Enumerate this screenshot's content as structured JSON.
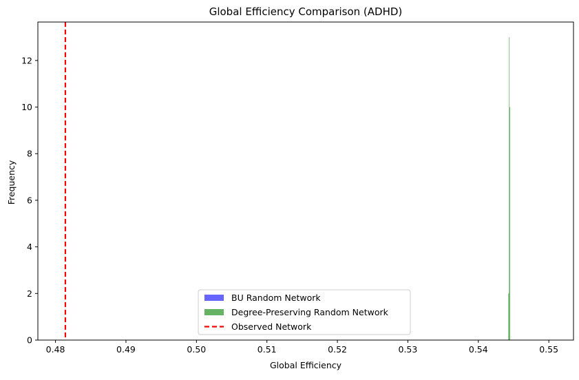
{
  "chart_data": {
    "type": "histogram",
    "title": "Global Efficiency Comparison (ADHD)",
    "xlabel": "Global Efficiency",
    "ylabel": "Frequency",
    "xlim": [
      0.4775,
      0.5535
    ],
    "ylim": [
      0,
      13.65
    ],
    "xticks": [
      0.48,
      0.49,
      0.5,
      0.51,
      0.52,
      0.53,
      0.54,
      0.55
    ],
    "xtick_labels": [
      "0.48",
      "0.49",
      "0.50",
      "0.51",
      "0.52",
      "0.53",
      "0.54",
      "0.55"
    ],
    "yticks": [
      0,
      2,
      4,
      6,
      8,
      10,
      12
    ],
    "ytick_labels": [
      "0",
      "2",
      "4",
      "6",
      "8",
      "10",
      "12"
    ],
    "grid": false,
    "legend_position": "lower center",
    "series": [
      {
        "name": "BU Random Network",
        "kind": "bars",
        "color": "#0000ff",
        "opacity": 0.6,
        "bins": []
      },
      {
        "name": "Degree-Preserving Random Network",
        "kind": "bars",
        "color": "#008000",
        "opacity": 0.6,
        "bins": [
          {
            "x0": 0.54425,
            "x1": 0.54435,
            "count": 2
          },
          {
            "x0": 0.54435,
            "x1": 0.5444,
            "count": 13
          },
          {
            "x0": 0.5444,
            "x1": 0.5445,
            "count": 10
          }
        ]
      },
      {
        "name": "Observed Network",
        "kind": "vline",
        "color": "#ff0000",
        "linestyle": "dashed",
        "x": 0.4814
      }
    ]
  }
}
